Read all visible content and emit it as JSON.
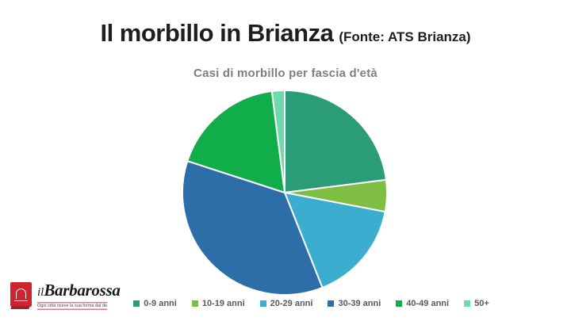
{
  "slide": {
    "title": "Il morbillo in Brianza",
    "source": "(Fonte: ATS Brianza)"
  },
  "chart_data": {
    "type": "pie",
    "title": "Casi di morbillo per fascia d'età",
    "categories": [
      "0-9 anni",
      "10-19 anni",
      "20-29 anni",
      "30-39 anni",
      "40-49 anni",
      "50+"
    ],
    "values": [
      23,
      5,
      16,
      36,
      18,
      2
    ],
    "values_are": "percent, estimated from slice angles",
    "colors": [
      "#2A9D78",
      "#7EBE42",
      "#3BAECF",
      "#2D6DA8",
      "#12AD4B",
      "#6EDAAA"
    ],
    "start_angle_deg": 0,
    "direction": "clockwise",
    "legend_position": "bottom",
    "slice_border_color": "#FFFFFF"
  },
  "logo": {
    "prefix": "il",
    "name": "Barbarossa",
    "tagline": "Ogni città riceve la sua forma dal deserto a cui si oppone",
    "brand_red": "#CE2430"
  }
}
